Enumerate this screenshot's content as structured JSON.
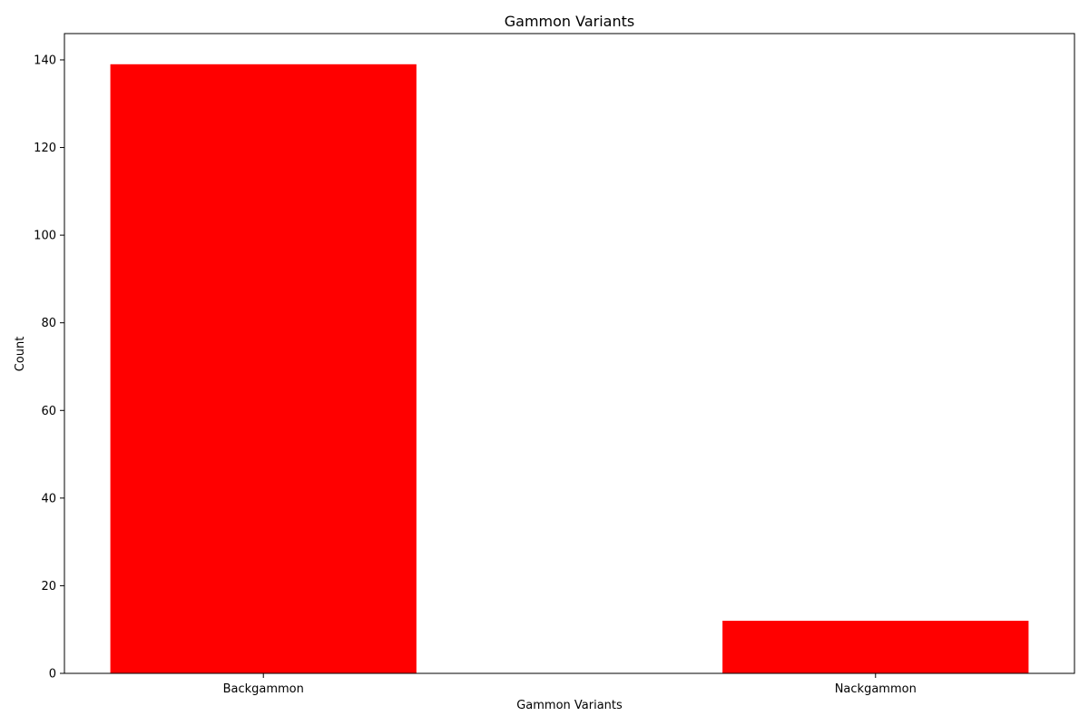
{
  "chart_data": {
    "type": "bar",
    "title": "Gammon Variants",
    "xlabel": "Gammon Variants",
    "ylabel": "Count",
    "categories": [
      "Backgammon",
      "Nackgammon"
    ],
    "values": [
      139,
      12
    ],
    "ylim": [
      0,
      146
    ],
    "yticks": [
      0,
      20,
      40,
      60,
      80,
      100,
      120,
      140
    ],
    "bar_color": "#ff0000",
    "grid": false,
    "legend": "none"
  }
}
